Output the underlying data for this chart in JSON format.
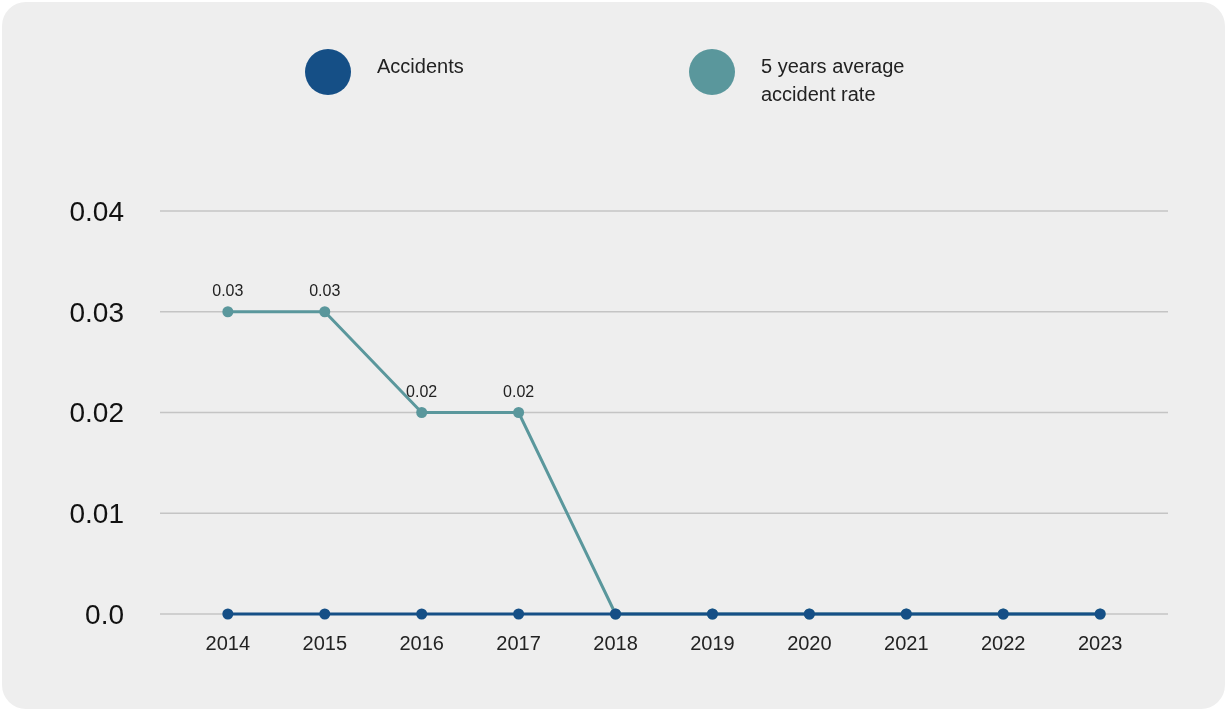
{
  "chart_data": {
    "type": "line",
    "categories": [
      "2014",
      "2015",
      "2016",
      "2017",
      "2018",
      "2019",
      "2020",
      "2021",
      "2022",
      "2023"
    ],
    "series": [
      {
        "name": "5 years average accident rate",
        "color": "#5a979c",
        "values": [
          0.03,
          0.03,
          0.02,
          0.02,
          0,
          0,
          0,
          0,
          0,
          0
        ],
        "value_labels": [
          "0.03",
          "0.03",
          "0.02",
          "0.02",
          null,
          null,
          null,
          null,
          null,
          null
        ]
      },
      {
        "name": "Accidents",
        "color": "#154f86",
        "values": [
          0,
          0,
          0,
          0,
          0,
          0,
          0,
          0,
          0,
          0
        ]
      }
    ],
    "ylim": [
      0,
      0.04
    ],
    "yticks": [
      {
        "value": 0,
        "label": "0.0"
      },
      0.01,
      0.02,
      0.03,
      0.04
    ],
    "grid": "y",
    "legend": "top",
    "marker": "circle",
    "line_style": "solid"
  }
}
